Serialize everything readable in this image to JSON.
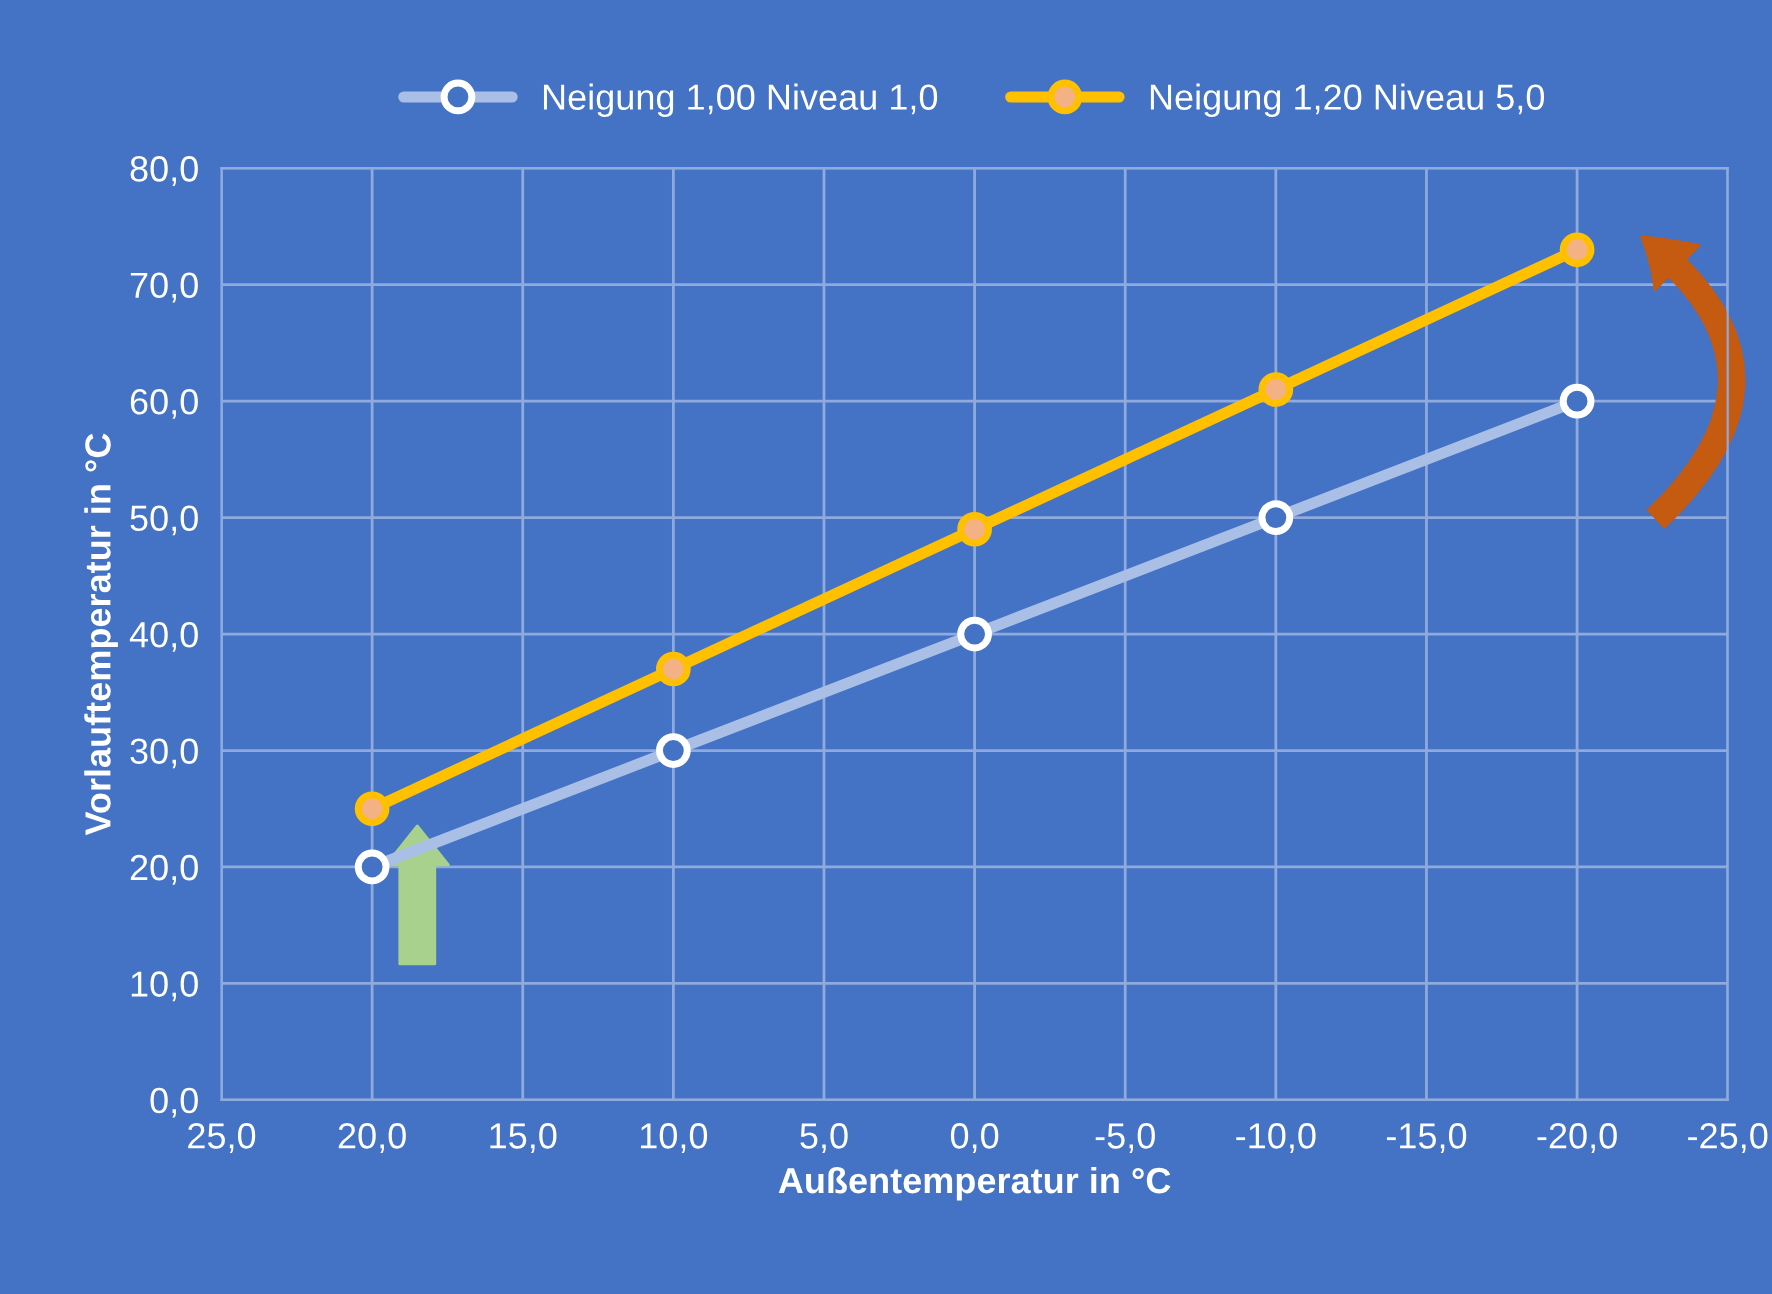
{
  "chart_data": {
    "type": "line",
    "xlabel": "Außentemperatur in °C",
    "ylabel": "Vorlauftemperatur in °C",
    "x": [
      20,
      10,
      0,
      -10,
      -20
    ],
    "series": [
      {
        "name": "Neigung 1,00 Niveau 1,0",
        "color": "#a9bfe6",
        "values": [
          20,
          30,
          40,
          50,
          60
        ]
      },
      {
        "name": "Neigung 1,20 Niveau 5,0",
        "color": "#ffc000",
        "values": [
          25,
          37,
          49,
          61,
          73
        ]
      }
    ],
    "xlim": [
      25,
      -25
    ],
    "xticks": [
      {
        "value": 25,
        "label": "25,0"
      },
      {
        "value": 20,
        "label": "20,0"
      },
      {
        "value": 15,
        "label": "15,0"
      },
      {
        "value": 10,
        "label": "10,0"
      },
      {
        "value": 5,
        "label": "5,0"
      },
      {
        "value": 0,
        "label": "0,0"
      },
      {
        "value": -5,
        "label": "-5,0"
      },
      {
        "value": -10,
        "label": "-10,0"
      },
      {
        "value": -15,
        "label": "-15,0"
      },
      {
        "value": -20,
        "label": "-20,0"
      },
      {
        "value": -25,
        "label": "-25,0"
      }
    ],
    "ylim": [
      0,
      80
    ],
    "yticks": [
      {
        "value": 0,
        "label": "0,0"
      },
      {
        "value": 10,
        "label": "10,0"
      },
      {
        "value": 20,
        "label": "20,0"
      },
      {
        "value": 30,
        "label": "30,0"
      },
      {
        "value": 40,
        "label": "40,0"
      },
      {
        "value": 50,
        "label": "50,0"
      },
      {
        "value": 60,
        "label": "60,0"
      },
      {
        "value": 70,
        "label": "70,0"
      },
      {
        "value": 80,
        "label": "80,0"
      }
    ],
    "grid": true,
    "legend": "top",
    "marker": "circle",
    "line_style": "solid"
  }
}
